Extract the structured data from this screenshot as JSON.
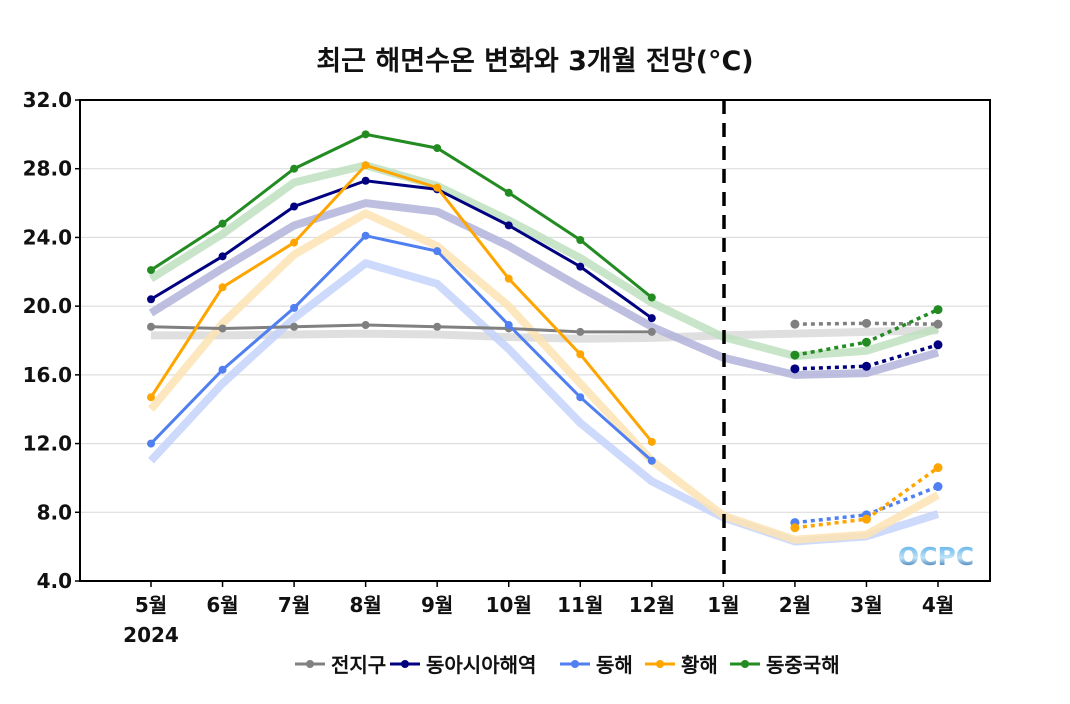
{
  "chart_data": {
    "type": "line",
    "title": "최근 해면수온 변화와 3개월 전망(°C)",
    "xlabel": "",
    "ylabel": "",
    "categories": [
      "5월",
      "6월",
      "7월",
      "8월",
      "9월",
      "10월",
      "11월",
      "12월",
      "1월",
      "2월",
      "3월",
      "4월"
    ],
    "year_label": "2024",
    "ylim": [
      4.0,
      32.0
    ],
    "yticks": [
      "4.0",
      "8.0",
      "12.0",
      "16.0",
      "20.0",
      "24.0",
      "28.0",
      "32.0"
    ],
    "grid": "horizontal",
    "legend_position": "bottom",
    "forecast_divider": "1월",
    "logo_text": "OCPC",
    "series": [
      {
        "name": "전지구",
        "color": "#808080",
        "band_color": "#d9d9d9",
        "observed": [
          18.8,
          18.7,
          18.8,
          18.9,
          18.8,
          18.7,
          18.5,
          18.5,
          null,
          null,
          null,
          null
        ],
        "forecast": [
          null,
          null,
          null,
          null,
          null,
          null,
          null,
          null,
          null,
          18.95,
          19.0,
          18.95
        ],
        "climatology": [
          18.3,
          18.3,
          18.35,
          18.4,
          18.35,
          18.2,
          18.1,
          18.15,
          18.3,
          18.4,
          18.5,
          18.6
        ]
      },
      {
        "name": "동아시아해역",
        "color": "#000080",
        "band_color": "#b3b3db",
        "observed": [
          20.4,
          22.9,
          25.8,
          27.3,
          26.8,
          24.7,
          22.3,
          19.3,
          null,
          null,
          null,
          null
        ],
        "forecast": [
          null,
          null,
          null,
          null,
          null,
          null,
          null,
          null,
          null,
          16.35,
          16.5,
          17.75
        ],
        "climatology": [
          19.6,
          22.2,
          24.7,
          26.0,
          25.5,
          23.5,
          21.1,
          18.8,
          17.0,
          16.0,
          16.1,
          17.3
        ]
      },
      {
        "name": "동해",
        "color": "#4f7ff0",
        "band_color": "#c4d3fb",
        "observed": [
          12.0,
          16.3,
          19.9,
          24.1,
          23.2,
          18.9,
          14.7,
          11.0,
          null,
          null,
          null,
          null
        ],
        "forecast": [
          null,
          null,
          null,
          null,
          null,
          null,
          null,
          null,
          null,
          7.4,
          7.85,
          9.5
        ],
        "climatology": [
          11.0,
          15.5,
          19.3,
          22.5,
          21.3,
          17.5,
          13.2,
          9.8,
          7.7,
          6.3,
          6.6,
          7.9
        ]
      },
      {
        "name": "황해",
        "color": "#ffa500",
        "band_color": "#fde3b3",
        "observed": [
          14.7,
          21.1,
          23.7,
          28.2,
          26.9,
          21.6,
          17.2,
          12.1,
          null,
          null,
          null,
          null
        ],
        "forecast": [
          null,
          null,
          null,
          null,
          null,
          null,
          null,
          null,
          null,
          7.1,
          7.6,
          10.6
        ],
        "climatology": [
          14.0,
          19.0,
          23.0,
          25.4,
          23.5,
          20.0,
          15.5,
          11.0,
          7.8,
          6.4,
          6.7,
          9.0
        ]
      },
      {
        "name": "동중국해",
        "color": "#228b22",
        "band_color": "#bfe0bf",
        "observed": [
          22.1,
          24.8,
          28.0,
          30.0,
          29.2,
          26.6,
          23.85,
          20.5,
          null,
          null,
          null,
          null
        ],
        "forecast": [
          null,
          null,
          null,
          null,
          null,
          null,
          null,
          null,
          null,
          17.15,
          17.9,
          19.8
        ],
        "climatology": [
          21.6,
          24.2,
          27.2,
          28.2,
          27.0,
          25.0,
          22.8,
          20.2,
          18.2,
          17.1,
          17.4,
          18.7
        ]
      }
    ]
  }
}
